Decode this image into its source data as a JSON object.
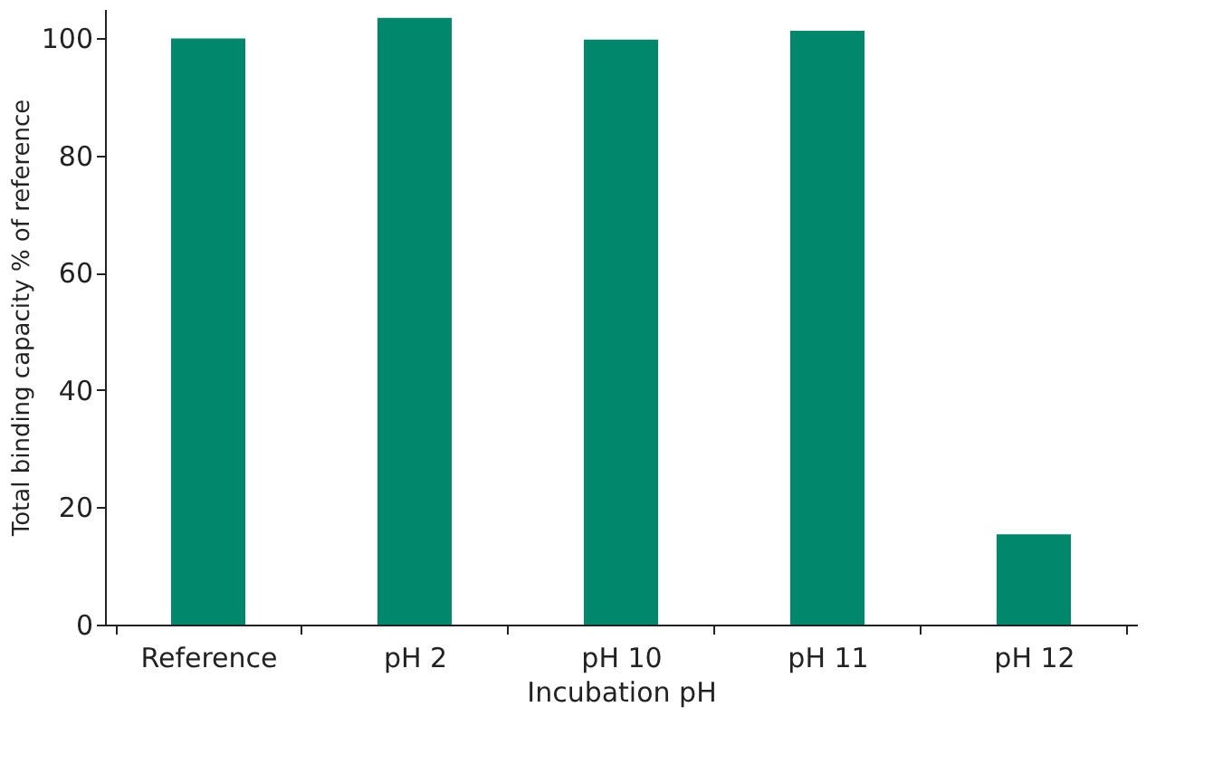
{
  "chart_data": {
    "type": "bar",
    "xlabel": "Incubation pH",
    "ylabel": "Total binding capacity % of reference",
    "categories": [
      "Reference",
      "pH 2",
      "pH 10",
      "pH 11",
      "pH 12"
    ],
    "values": [
      100,
      103.5,
      99.8,
      101.3,
      15.4
    ],
    "color": "#00876c",
    "ylim": [
      0,
      105
    ],
    "yticks": [
      0,
      20,
      40,
      60,
      80,
      100
    ],
    "grid": false
  }
}
